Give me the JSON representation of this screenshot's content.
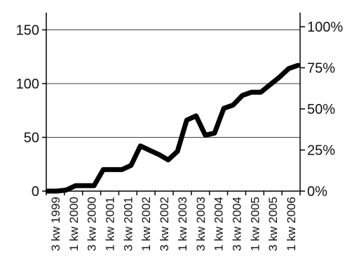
{
  "chart_data": {
    "type": "line",
    "title": "",
    "xlabel": "",
    "ylabel": "",
    "ylim": [
      0,
      150
    ],
    "y2lim": [
      0,
      100
    ],
    "grid": true,
    "line_color": "#000000",
    "left_ticks": [
      "0",
      "50",
      "100",
      "150"
    ],
    "right_ticks": [
      "0%",
      "25%",
      "50%",
      "75%",
      "100%"
    ],
    "x_labels": [
      "3 kw 1999",
      "1 kw 2000",
      "3 kw 2000",
      "1 kw 2001",
      "3 kw 2001",
      "1 kw 2002",
      "3 kw 2002",
      "1 kw 2003",
      "3 kw 2003",
      "1 kw 2004",
      "3 kw 2004",
      "1 kw 2005",
      "3 kw 2005",
      "1 kw 2006"
    ],
    "series": [
      {
        "values": [
          0,
          0,
          1,
          5,
          5,
          5,
          20,
          20,
          20,
          24,
          42,
          38,
          34,
          29,
          37,
          66,
          70,
          52,
          54,
          77,
          80,
          89,
          92,
          92,
          99,
          106,
          114,
          117
        ]
      }
    ]
  }
}
